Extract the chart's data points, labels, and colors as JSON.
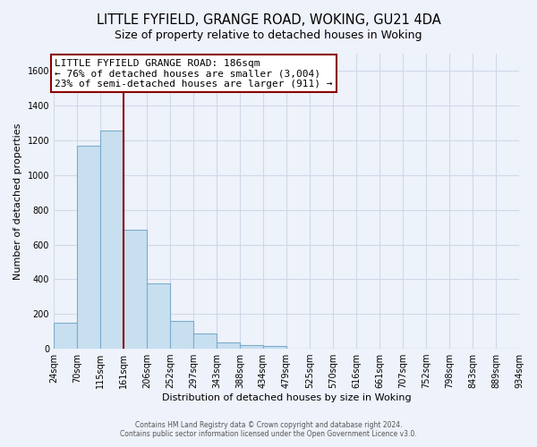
{
  "title": "LITTLE FYFIELD, GRANGE ROAD, WOKING, GU21 4DA",
  "subtitle": "Size of property relative to detached houses in Woking",
  "xlabel": "Distribution of detached houses by size in Woking",
  "ylabel": "Number of detached properties",
  "bar_color": "#c8dff0",
  "bar_edge_color": "#7aadcc",
  "background_color": "#eef2fa",
  "plot_bg_color": "#eef2fa",
  "bins": [
    "24sqm",
    "70sqm",
    "115sqm",
    "161sqm",
    "206sqm",
    "252sqm",
    "297sqm",
    "343sqm",
    "388sqm",
    "434sqm",
    "479sqm",
    "525sqm",
    "570sqm",
    "616sqm",
    "661sqm",
    "707sqm",
    "752sqm",
    "798sqm",
    "843sqm",
    "889sqm",
    "934sqm"
  ],
  "values": [
    150,
    1170,
    1255,
    685,
    375,
    160,
    90,
    35,
    20,
    15,
    0,
    0,
    0,
    0,
    0,
    0,
    0,
    0,
    0,
    0
  ],
  "ylim": [
    0,
    1700
  ],
  "yticks": [
    0,
    200,
    400,
    600,
    800,
    1000,
    1200,
    1400,
    1600
  ],
  "annotation_lines": [
    "LITTLE FYFIELD GRANGE ROAD: 186sqm",
    "← 76% of detached houses are smaller (3,004)",
    "23% of semi-detached houses are larger (911) →"
  ],
  "property_line_x": 2.5,
  "footer_line1": "Contains HM Land Registry data © Crown copyright and database right 2024.",
  "footer_line2": "Contains public sector information licensed under the Open Government Licence v3.0.",
  "grid_color": "#d0d8e8",
  "title_fontsize": 10.5,
  "subtitle_fontsize": 9,
  "tick_fontsize": 7,
  "ylabel_fontsize": 8,
  "xlabel_fontsize": 8,
  "annotation_fontsize": 8
}
